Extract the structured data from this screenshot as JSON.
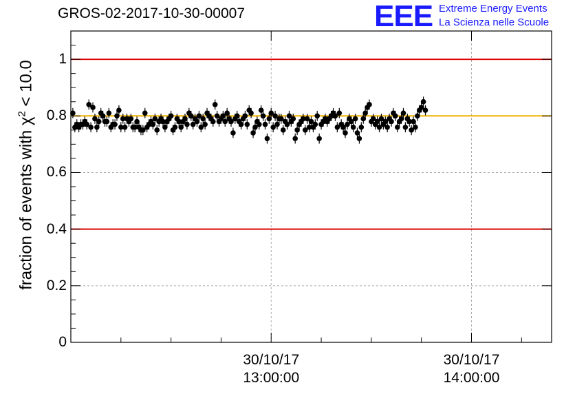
{
  "title": "GROS-02-2017-10-30-00007",
  "logo": {
    "mark": "EEE",
    "line1": "Extreme Energy Events",
    "line2": "La Scienza nelle Scuole",
    "color": "#1a1aff"
  },
  "chart_data": {
    "type": "scatter",
    "title": "GROS-02-2017-10-30-00007",
    "ylabel_prefix": "fraction of events with ",
    "ylabel_symbol": "χ",
    "ylabel_sup": "2",
    "ylabel_suffix": " < 10.0",
    "xlabel": "",
    "ylim": [
      0,
      1.1
    ],
    "xlim_hours": [
      12.0,
      14.4
    ],
    "yticks": [
      "0",
      "0.2",
      "0.4",
      "0.6",
      "0.8",
      "1"
    ],
    "xticks": [
      {
        "hour": 13.0,
        "date": "30/10/17",
        "time": "13:00:00"
      },
      {
        "hour": 14.0,
        "date": "30/10/17",
        "time": "14:00:00"
      }
    ],
    "grid": true,
    "reference_lines": [
      {
        "y": 1.0,
        "color": "#dd0000"
      },
      {
        "y": 0.4,
        "color": "#dd0000"
      },
      {
        "y": 0.8,
        "color": "#f0b400"
      }
    ],
    "marker_color": "#000000",
    "error": 0.018,
    "series": [
      {
        "x_start_hour": 12.01,
        "x_step_hour": 0.01,
        "values": [
          0.81,
          0.76,
          0.77,
          0.76,
          0.77,
          0.77,
          0.78,
          0.77,
          0.84,
          0.76,
          0.83,
          0.79,
          0.76,
          0.78,
          0.81,
          0.8,
          0.78,
          0.78,
          0.81,
          0.76,
          0.77,
          0.77,
          0.8,
          0.82,
          0.76,
          0.79,
          0.76,
          0.79,
          0.78,
          0.79,
          0.76,
          0.76,
          0.78,
          0.76,
          0.75,
          0.75,
          0.81,
          0.76,
          0.77,
          0.78,
          0.77,
          0.79,
          0.75,
          0.78,
          0.79,
          0.78,
          0.76,
          0.78,
          0.79,
          0.8,
          0.75,
          0.76,
          0.79,
          0.78,
          0.76,
          0.78,
          0.79,
          0.77,
          0.81,
          0.8,
          0.77,
          0.79,
          0.78,
          0.8,
          0.76,
          0.79,
          0.77,
          0.81,
          0.8,
          0.79,
          0.78,
          0.84,
          0.8,
          0.78,
          0.79,
          0.8,
          0.78,
          0.81,
          0.79,
          0.78,
          0.74,
          0.79,
          0.8,
          0.78,
          0.77,
          0.79,
          0.8,
          0.77,
          0.82,
          0.81,
          0.74,
          0.76,
          0.78,
          0.77,
          0.82,
          0.8,
          0.77,
          0.72,
          0.79,
          0.81,
          0.76,
          0.8,
          0.77,
          0.79,
          0.79,
          0.75,
          0.78,
          0.77,
          0.8,
          0.78,
          0.79,
          0.72,
          0.75,
          0.77,
          0.78,
          0.79,
          0.75,
          0.79,
          0.76,
          0.78,
          0.76,
          0.77,
          0.8,
          0.72,
          0.77,
          0.78,
          0.79,
          0.78,
          0.79,
          0.8,
          0.81,
          0.8,
          0.76,
          0.81,
          0.77,
          0.76,
          0.74,
          0.77,
          0.79,
          0.78,
          0.76,
          0.79,
          0.74,
          0.72,
          0.76,
          0.79,
          0.81,
          0.83,
          0.84,
          0.78,
          0.79,
          0.77,
          0.78,
          0.76,
          0.79,
          0.77,
          0.78,
          0.76,
          0.79,
          0.78,
          0.81,
          0.8,
          0.76,
          0.78,
          0.79,
          0.81,
          0.76,
          0.79,
          0.78,
          0.75,
          0.78,
          0.76,
          0.8,
          0.82,
          0.83,
          0.85,
          0.82
        ]
      }
    ]
  }
}
